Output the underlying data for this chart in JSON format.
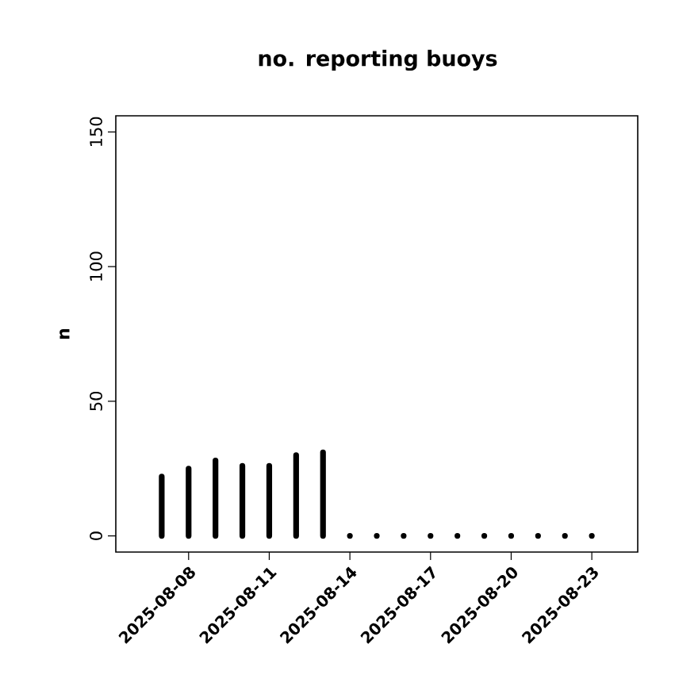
{
  "chart_data": {
    "type": "bar",
    "title": "no. reporting buoys",
    "ylabel": "n",
    "x": [
      "2025-08-07",
      "2025-08-08",
      "2025-08-09",
      "2025-08-10",
      "2025-08-11",
      "2025-08-12",
      "2025-08-13",
      "2025-08-14",
      "2025-08-15",
      "2025-08-16",
      "2025-08-17",
      "2025-08-18",
      "2025-08-19",
      "2025-08-20",
      "2025-08-21",
      "2025-08-22",
      "2025-08-23"
    ],
    "values": [
      22,
      25,
      28,
      26,
      26,
      30,
      31,
      0,
      0,
      0,
      0,
      0,
      0,
      0,
      0,
      0,
      0
    ],
    "color": "#000000",
    "xlim": [
      "2025-08-05T07:00",
      "2025-08-24T17:00"
    ],
    "xticks": [
      {
        "value": "2025-08-08",
        "label": "2025-08-08"
      },
      {
        "value": "2025-08-11",
        "label": "2025-08-11"
      },
      {
        "value": "2025-08-14",
        "label": "2025-08-14"
      },
      {
        "value": "2025-08-17",
        "label": "2025-08-17"
      },
      {
        "value": "2025-08-20",
        "label": "2025-08-20"
      },
      {
        "value": "2025-08-23",
        "label": "2025-08-23"
      }
    ],
    "ylim": [
      -6,
      156
    ],
    "yticks": [
      0,
      50,
      100,
      150
    ],
    "grid": false
  }
}
